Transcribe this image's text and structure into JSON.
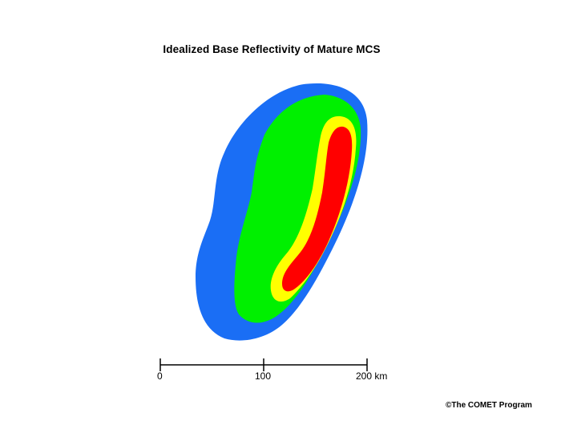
{
  "figure": {
    "title": "Idealized Base Reflectivity of Mature MCS",
    "colors": {
      "outer": "#1a6ef5",
      "moderate": "#00f000",
      "strong": "#ffff00",
      "intense": "#ff0000"
    }
  },
  "scale_bar": {
    "ticks": [
      "0",
      "100",
      "200 km"
    ]
  },
  "credit": "©The COMET Program"
}
